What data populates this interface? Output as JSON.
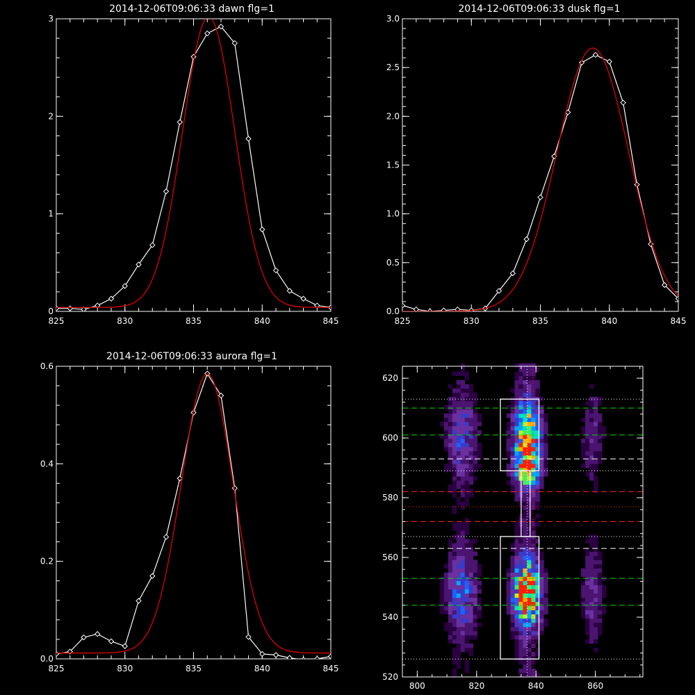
{
  "chart_data": [
    {
      "type": "line",
      "title": "2014-12-06T09:06:33 dawn flg=1",
      "xlim": [
        825,
        845
      ],
      "ylim": [
        0,
        3
      ],
      "xticks": [
        825,
        830,
        835,
        840,
        845
      ],
      "yticks": [
        0,
        1,
        2,
        3
      ],
      "ytick_labels": [
        "0",
        "1",
        "2",
        "3"
      ],
      "series": [
        {
          "color": "#ffffff",
          "markers": "diamond",
          "x": [
            825,
            826,
            827,
            828,
            829,
            830,
            831,
            832,
            833,
            834,
            835,
            836,
            837,
            838,
            839,
            840,
            841,
            842,
            843,
            844,
            845
          ],
          "values": [
            0.03,
            0.03,
            0.02,
            0.06,
            0.13,
            0.26,
            0.48,
            0.68,
            1.23,
            1.94,
            2.61,
            2.85,
            2.92,
            2.75,
            1.77,
            0.84,
            0.42,
            0.21,
            0.13,
            0.06,
            0.04
          ]
        },
        {
          "color": "#e00000",
          "fit": "gaussian",
          "amplitude": 2.98,
          "center": 836.1,
          "sigma": 1.9,
          "offset": 0.04
        }
      ]
    },
    {
      "type": "line",
      "title": "2014-12-06T09:06:33 dusk flg=1",
      "xlim": [
        825,
        845
      ],
      "ylim": [
        0,
        3
      ],
      "xticks": [
        825,
        830,
        835,
        840,
        845
      ],
      "yticks": [
        0,
        0.5,
        1,
        1.5,
        2,
        2.5,
        3
      ],
      "ytick_labels": [
        "0.0",
        "0.5",
        "1.0",
        "1.5",
        "2.0",
        "2.5",
        "3.0"
      ],
      "series": [
        {
          "color": "#ffffff",
          "markers": "diamond",
          "x": [
            825,
            826,
            827,
            828,
            829,
            830,
            831,
            832,
            833,
            834,
            835,
            836,
            837,
            838,
            839,
            840,
            841,
            842,
            843,
            844,
            845
          ],
          "values": [
            0.06,
            0.02,
            0.0,
            0.01,
            0.02,
            0.01,
            0.03,
            0.21,
            0.39,
            0.74,
            1.17,
            1.59,
            2.04,
            2.55,
            2.63,
            2.56,
            2.14,
            1.3,
            0.69,
            0.27,
            0.13
          ]
        },
        {
          "color": "#e00000",
          "fit": "gaussian",
          "amplitude": 2.7,
          "center": 838.8,
          "sigma": 2.6,
          "offset": 0.0
        }
      ]
    },
    {
      "type": "line",
      "title": "2014-12-06T09:06:33 aurora flg=1",
      "xlim": [
        825,
        845
      ],
      "ylim": [
        0,
        0.6
      ],
      "xticks": [
        825,
        830,
        835,
        840,
        845
      ],
      "yticks": [
        0,
        0.2,
        0.4,
        0.6
      ],
      "ytick_labels": [
        "0.0",
        "0.2",
        "0.4",
        "0.6"
      ],
      "series": [
        {
          "color": "#ffffff",
          "markers": "diamond",
          "x": [
            825,
            826,
            827,
            828,
            829,
            830,
            831,
            832,
            833,
            834,
            835,
            836,
            837,
            838,
            839,
            840,
            841,
            842,
            843,
            844,
            845
          ],
          "values": [
            0.01,
            0.015,
            0.044,
            0.051,
            0.036,
            0.026,
            0.119,
            0.17,
            0.25,
            0.37,
            0.505,
            0.585,
            0.54,
            0.35,
            0.045,
            0.01,
            0.008,
            0.002,
            -0.002,
            0.0,
            0.005
          ]
        },
        {
          "color": "#e00000",
          "fit": "gaussian",
          "amplitude": 0.572,
          "center": 836.0,
          "sigma": 1.9,
          "offset": 0.012
        }
      ]
    },
    {
      "type": "heatmap",
      "xlim": [
        795,
        876
      ],
      "ylim": [
        520,
        624
      ],
      "xticks": [
        800,
        820,
        840,
        860
      ],
      "yticks": [
        520,
        540,
        560,
        580,
        600,
        620
      ],
      "colormap": [
        "#2a0040",
        "#4a1470",
        "#6a30a0",
        "#3a3ac8",
        "#2060ff",
        "#00a8ff",
        "#00e0c0",
        "#40f060",
        "#c0f020",
        "#ffb000",
        "#ff2000"
      ],
      "emission_columns": [
        {
          "center_x": 815,
          "width": 3.5,
          "peak": 0.45
        },
        {
          "center_x": 837,
          "width": 3.0,
          "peak": 1.0
        },
        {
          "center_x": 859,
          "width": 2.5,
          "peak": 0.25
        }
      ],
      "boxes": [
        {
          "x": [
            828,
            841
          ],
          "y": [
            589,
            613
          ]
        },
        {
          "x": [
            835,
            838
          ],
          "y": [
            567,
            589
          ]
        },
        {
          "x": [
            828,
            841
          ],
          "y": [
            526,
            567
          ]
        }
      ],
      "hlines": [
        {
          "y": 613,
          "color": "#ffffff",
          "style": "dotted"
        },
        {
          "y": 610,
          "color": "#00e000",
          "style": "dashed"
        },
        {
          "y": 601,
          "color": "#00e000",
          "style": "dashed"
        },
        {
          "y": 593,
          "color": "#ffffff",
          "style": "dashed"
        },
        {
          "y": 589,
          "color": "#ffffff",
          "style": "dotted"
        },
        {
          "y": 582,
          "color": "#ff2020",
          "style": "dashed"
        },
        {
          "y": 577,
          "color": "#ff2020",
          "style": "dotted"
        },
        {
          "y": 572,
          "color": "#ff2020",
          "style": "dashed"
        },
        {
          "y": 567,
          "color": "#ffffff",
          "style": "dotted"
        },
        {
          "y": 563,
          "color": "#ffffff",
          "style": "dashed"
        },
        {
          "y": 553,
          "color": "#00e000",
          "style": "dashed"
        },
        {
          "y": 544,
          "color": "#00e000",
          "style": "dashed"
        },
        {
          "y": 526,
          "color": "#ffffff",
          "style": "dotted"
        }
      ],
      "vlines": [
        {
          "x": 837,
          "color": "#ffffff",
          "style": "dotted"
        },
        {
          "x": 839,
          "color": "#ff2020",
          "style": "dotted"
        }
      ]
    }
  ]
}
